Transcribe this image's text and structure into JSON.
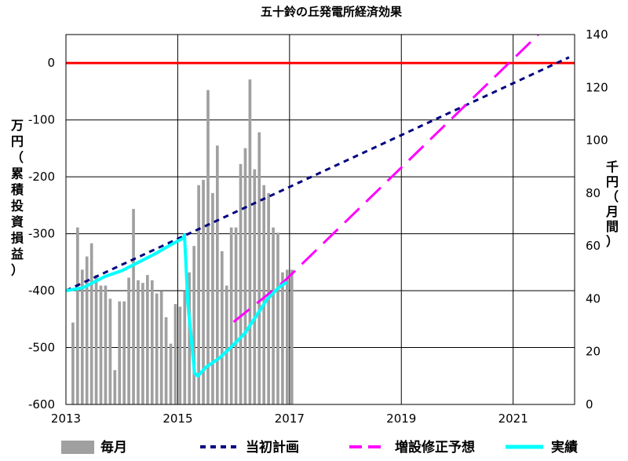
{
  "chart_data": {
    "type": "bar+line",
    "title": "五十鈴の丘発電所経済効果",
    "left_axis": {
      "label": "万円（累積投資損益）",
      "range": [
        -600,
        50
      ],
      "ticks": [
        0,
        -100,
        -200,
        -300,
        -400,
        -500,
        -600
      ]
    },
    "right_axis": {
      "label": "千円（月間）",
      "range": [
        0,
        140
      ],
      "ticks": [
        0,
        20,
        40,
        60,
        80,
        100,
        120,
        140
      ]
    },
    "x_axis": {
      "range": [
        2013,
        2022.1
      ],
      "ticks": [
        2013,
        2015,
        2017,
        2019,
        2021
      ]
    },
    "grid": {
      "horizontal": true,
      "vertical": true
    },
    "reference_line": {
      "y": 0,
      "color": "#ff0000"
    },
    "legend_position": "bottom",
    "series": [
      {
        "name": "毎月",
        "type": "bar",
        "axis": "right",
        "color": "#a0a0a0",
        "start": 2013.125,
        "step": 0.0833333,
        "values": [
          31,
          67,
          51,
          56,
          61,
          49,
          45,
          45,
          40,
          13,
          39,
          39,
          48,
          74,
          47,
          46,
          49,
          47,
          42,
          43,
          33,
          23,
          38,
          37,
          43,
          50,
          60,
          83,
          85,
          119,
          80,
          98,
          58,
          45,
          67,
          67,
          91,
          97,
          123,
          89,
          103,
          83,
          80,
          67,
          65,
          50,
          51,
          51
        ]
      },
      {
        "name": "当初計画",
        "type": "line",
        "axis": "left",
        "color": "#000080",
        "style": "dashed",
        "points": [
          [
            2013,
            -400
          ],
          [
            2022,
            10
          ]
        ]
      },
      {
        "name": "増設修正予想",
        "type": "line",
        "axis": "left",
        "color": "#ff00ff",
        "style": "long-dashed",
        "points": [
          [
            2016.0,
            -455
          ],
          [
            2016.9,
            -384
          ],
          [
            2021.45,
            50
          ]
        ]
      },
      {
        "name": "実績",
        "type": "line",
        "axis": "left",
        "color": "#00ffff",
        "style": "solid",
        "points": [
          [
            2013,
            -400
          ],
          [
            2013.3,
            -395
          ],
          [
            2013.7,
            -375
          ],
          [
            2014.0,
            -365
          ],
          [
            2014.3,
            -350
          ],
          [
            2014.6,
            -335
          ],
          [
            2014.9,
            -318
          ],
          [
            2015.1,
            -308
          ],
          [
            2015.12,
            -302
          ],
          [
            2015.18,
            -420
          ],
          [
            2015.3,
            -545
          ],
          [
            2015.36,
            -550
          ],
          [
            2015.5,
            -535
          ],
          [
            2015.75,
            -518
          ],
          [
            2016.0,
            -495
          ],
          [
            2016.2,
            -475
          ],
          [
            2016.4,
            -445
          ],
          [
            2016.6,
            -415
          ],
          [
            2016.8,
            -395
          ],
          [
            2016.95,
            -385
          ]
        ]
      }
    ]
  }
}
